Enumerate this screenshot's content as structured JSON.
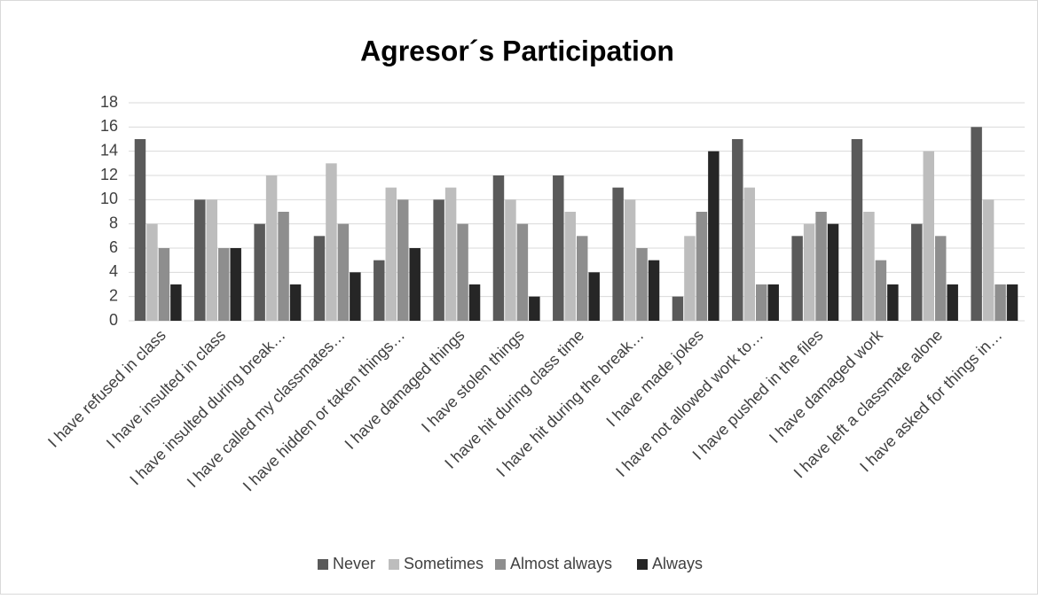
{
  "chart_data": {
    "type": "bar",
    "title": "Agresor´s Participation",
    "categories": [
      "I have refused in class",
      "I have insulted in class",
      "I have insulted during break…",
      "I have called my classmates…",
      "I have hidden or taken things…",
      "I have damaged things",
      "I have stolen things",
      "I have hit during class time",
      "I have hit during the break…",
      "I have made jokes",
      "I have not allowed work to…",
      "I have pushed in the files",
      "I have damaged work",
      "I have left a classmate alone",
      "I have asked for things in…"
    ],
    "series": [
      {
        "name": "Never",
        "color": "#5a5a5a",
        "values": [
          15,
          10,
          8,
          7,
          5,
          10,
          12,
          12,
          11,
          2,
          15,
          7,
          15,
          8,
          16
        ]
      },
      {
        "name": "Sometimes",
        "color": "#bdbdbd",
        "values": [
          8,
          10,
          12,
          13,
          11,
          11,
          10,
          9,
          10,
          7,
          11,
          8,
          9,
          14,
          10
        ]
      },
      {
        "name": "Almost always",
        "color": "#8e8e8e",
        "values": [
          6,
          6,
          9,
          8,
          10,
          8,
          8,
          7,
          6,
          9,
          3,
          9,
          5,
          7,
          3
        ]
      },
      {
        "name": "Always",
        "color": "#262626",
        "values": [
          3,
          6,
          3,
          4,
          6,
          3,
          2,
          4,
          5,
          14,
          3,
          8,
          3,
          3,
          3
        ]
      }
    ],
    "ylim": [
      0,
      18
    ],
    "yticks": [
      0,
      2,
      4,
      6,
      8,
      10,
      12,
      14,
      16,
      18
    ],
    "grid": true,
    "legend": "bottom"
  }
}
